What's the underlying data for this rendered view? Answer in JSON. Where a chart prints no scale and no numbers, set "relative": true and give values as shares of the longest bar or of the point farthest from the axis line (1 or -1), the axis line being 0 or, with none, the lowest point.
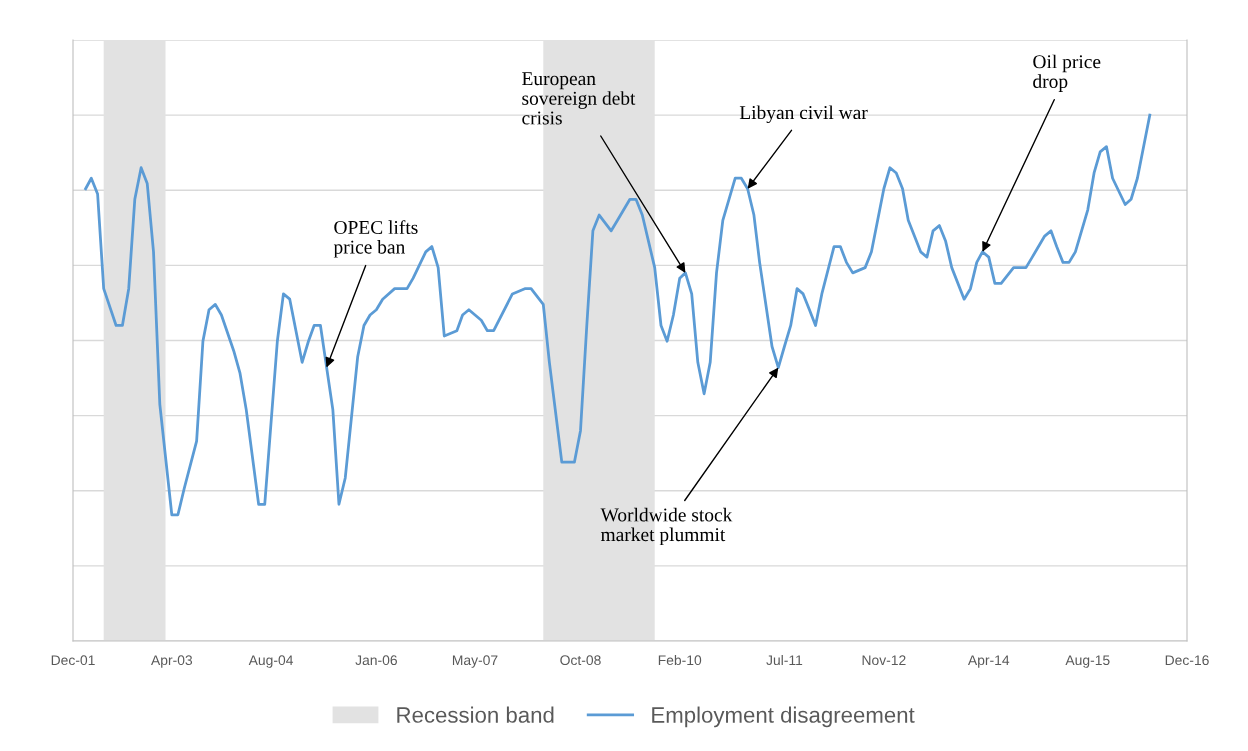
{
  "chart_data": {
    "type": "line",
    "relative": true,
    "x": [
      "2002-02",
      "2002-03",
      "2002-04",
      "2002-05",
      "2002-07",
      "2002-08",
      "2002-09",
      "2002-10",
      "2002-11",
      "2002-12",
      "2003-01",
      "2003-02",
      "2003-03",
      "2003-04",
      "2003-05",
      "2003-06",
      "2003-08",
      "2003-09",
      "2003-10",
      "2003-11",
      "2003-12",
      "2004-02",
      "2004-03",
      "2004-04",
      "2004-06",
      "2004-07",
      "2004-09",
      "2004-10",
      "2004-11",
      "2005-01",
      "2005-02",
      "2005-03",
      "2005-04",
      "2005-06",
      "2005-07",
      "2005-08",
      "2005-10",
      "2005-11",
      "2005-12",
      "2006-01",
      "2006-02",
      "2006-04",
      "2006-06",
      "2006-07",
      "2006-09",
      "2006-10",
      "2006-11",
      "2006-12",
      "2007-02",
      "2007-03",
      "2007-04",
      "2007-06",
      "2007-07",
      "2007-08",
      "2007-11",
      "2008-01",
      "2008-02",
      "2008-04",
      "2008-05",
      "2008-07",
      "2008-09",
      "2008-10",
      "2008-11",
      "2008-12",
      "2009-01",
      "2009-03",
      "2009-04",
      "2009-06",
      "2009-07",
      "2009-08",
      "2009-10",
      "2009-11",
      "2009-12",
      "2010-01",
      "2010-02",
      "2010-03",
      "2010-04",
      "2010-05",
      "2010-06",
      "2010-07",
      "2010-08",
      "2010-09",
      "2010-11",
      "2010-12",
      "2011-01",
      "2011-02",
      "2011-03",
      "2011-05",
      "2011-06",
      "2011-07",
      "2011-08",
      "2011-09",
      "2011-10",
      "2011-11",
      "2011-12",
      "2012-01",
      "2012-03",
      "2012-04",
      "2012-05",
      "2012-06",
      "2012-08",
      "2012-09",
      "2012-11",
      "2012-12",
      "2013-01",
      "2013-02",
      "2013-03",
      "2013-05",
      "2013-06",
      "2013-07",
      "2013-08",
      "2013-09",
      "2013-10",
      "2013-12",
      "2014-01",
      "2014-02",
      "2014-03",
      "2014-04",
      "2014-05",
      "2014-06",
      "2014-08",
      "2014-10",
      "2014-11",
      "2015-01",
      "2015-02",
      "2015-03",
      "2015-04",
      "2015-05",
      "2015-06",
      "2015-08",
      "2015-09",
      "2015-10",
      "2015-11",
      "2015-12",
      "2016-02",
      "2016-03",
      "2016-04",
      "2016-06"
    ],
    "series": [
      {
        "name": "Employment disagreement",
        "color": "#5b9bd5",
        "values": [
          0.86,
          0.88,
          0.85,
          0.67,
          0.6,
          0.6,
          0.67,
          0.84,
          0.9,
          0.87,
          0.74,
          0.45,
          0.35,
          0.24,
          0.24,
          0.29,
          0.38,
          0.57,
          0.63,
          0.64,
          0.62,
          0.55,
          0.51,
          0.44,
          0.26,
          0.26,
          0.57,
          0.66,
          0.65,
          0.53,
          0.57,
          0.6,
          0.6,
          0.44,
          0.26,
          0.31,
          0.54,
          0.6,
          0.62,
          0.63,
          0.65,
          0.67,
          0.67,
          0.69,
          0.74,
          0.75,
          0.71,
          0.58,
          0.59,
          0.62,
          0.63,
          0.61,
          0.59,
          0.59,
          0.66,
          0.67,
          0.67,
          0.64,
          0.53,
          0.34,
          0.34,
          0.4,
          0.6,
          0.78,
          0.81,
          0.78,
          0.8,
          0.84,
          0.84,
          0.81,
          0.71,
          0.6,
          0.57,
          0.62,
          0.69,
          0.7,
          0.66,
          0.53,
          0.47,
          0.53,
          0.7,
          0.8,
          0.88,
          0.88,
          0.86,
          0.81,
          0.72,
          0.56,
          0.52,
          0.56,
          0.6,
          0.67,
          0.66,
          0.63,
          0.6,
          0.66,
          0.75,
          0.75,
          0.72,
          0.7,
          0.71,
          0.74,
          0.86,
          0.9,
          0.89,
          0.86,
          0.8,
          0.74,
          0.73,
          0.78,
          0.79,
          0.76,
          0.71,
          0.65,
          0.67,
          0.72,
          0.74,
          0.73,
          0.68,
          0.68,
          0.71,
          0.71,
          0.73,
          0.77,
          0.78,
          0.75,
          0.72,
          0.72,
          0.74,
          0.82,
          0.89,
          0.93,
          0.94,
          0.88,
          0.83,
          0.84,
          0.88,
          1.0
        ]
      }
    ],
    "xlim": [
      "2001-12",
      "2016-12"
    ],
    "xticks": [
      {
        "value": "2001-12",
        "label": "Dec-01"
      },
      {
        "value": "2003-04",
        "label": "Apr-03"
      },
      {
        "value": "2004-08",
        "label": "Aug-04"
      },
      {
        "value": "2006-01",
        "label": "Jan-06"
      },
      {
        "value": "2007-05",
        "label": "May-07"
      },
      {
        "value": "2008-10",
        "label": "Oct-08"
      },
      {
        "value": "2010-02",
        "label": "Feb-10"
      },
      {
        "value": "2011-07",
        "label": "Jul-11"
      },
      {
        "value": "2012-11",
        "label": "Nov-12"
      },
      {
        "value": "2014-04",
        "label": "Apr-14"
      },
      {
        "value": "2015-08",
        "label": "Aug-15"
      },
      {
        "value": "2016-12",
        "label": "Dec-16"
      }
    ],
    "bands": [
      {
        "axis": "x",
        "from": "2002-05",
        "to": "2003-03",
        "label": "Recession band",
        "color": "#e2e2e2"
      },
      {
        "axis": "x",
        "from": "2008-04",
        "to": "2009-10",
        "color": "#e2e2e2"
      }
    ],
    "annotations": [
      {
        "text": "OPEC lifts\nprice ban",
        "x": "2005-05",
        "y": 0.52
      },
      {
        "text": "European\nsovereign debt\ncrisis",
        "x": "2010-03",
        "y": 0.7
      },
      {
        "text": "Libyan civil war",
        "x": "2011-01",
        "y": 0.86
      },
      {
        "text": "Worldwide stock\nmarket plummit",
        "x": "2011-06",
        "y": 0.52
      },
      {
        "text": "Oil price\ndrop",
        "x": "2014-03",
        "y": 0.74
      }
    ],
    "grid": "y",
    "legend": "bottom",
    "line_style": "solid",
    "marker": "none"
  }
}
